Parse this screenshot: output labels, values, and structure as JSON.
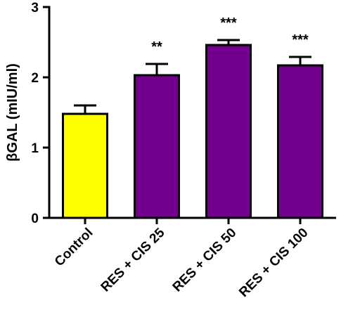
{
  "chart_data": {
    "type": "bar",
    "title": "",
    "ylabel": "βGAL (mIU/ml)",
    "xlabel": "",
    "categories": [
      "Control",
      "RES + CIS 25",
      "RES + CIS 50",
      "RES + CIS 100"
    ],
    "values": [
      1.48,
      2.03,
      2.46,
      2.17
    ],
    "errors": [
      0.12,
      0.16,
      0.07,
      0.12
    ],
    "significance": [
      "",
      "**",
      "***",
      "***"
    ],
    "colors": [
      "#FFFF00",
      "#73008C",
      "#73008C",
      "#73008C"
    ],
    "ylim": [
      0,
      3
    ],
    "yticks": [
      "0",
      "1",
      "2",
      "3"
    ],
    "grid": false
  }
}
